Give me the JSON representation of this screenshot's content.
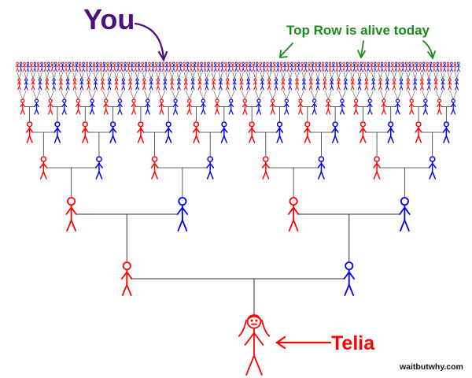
{
  "labels": {
    "you": "You",
    "top_row": "Top Row is alive today",
    "telia": "Telia",
    "credit": "waitbutwhy.com"
  },
  "colors": {
    "female": "#ff0000",
    "male": "#0000ee",
    "you": "#4b0f82",
    "top_row": "#1a8a1a",
    "telia": "#ff0000",
    "connector": "#333333"
  },
  "tree": {
    "generations": 8,
    "people_per_generation": [
      1,
      2,
      4,
      8,
      16,
      32,
      64,
      128
    ]
  }
}
